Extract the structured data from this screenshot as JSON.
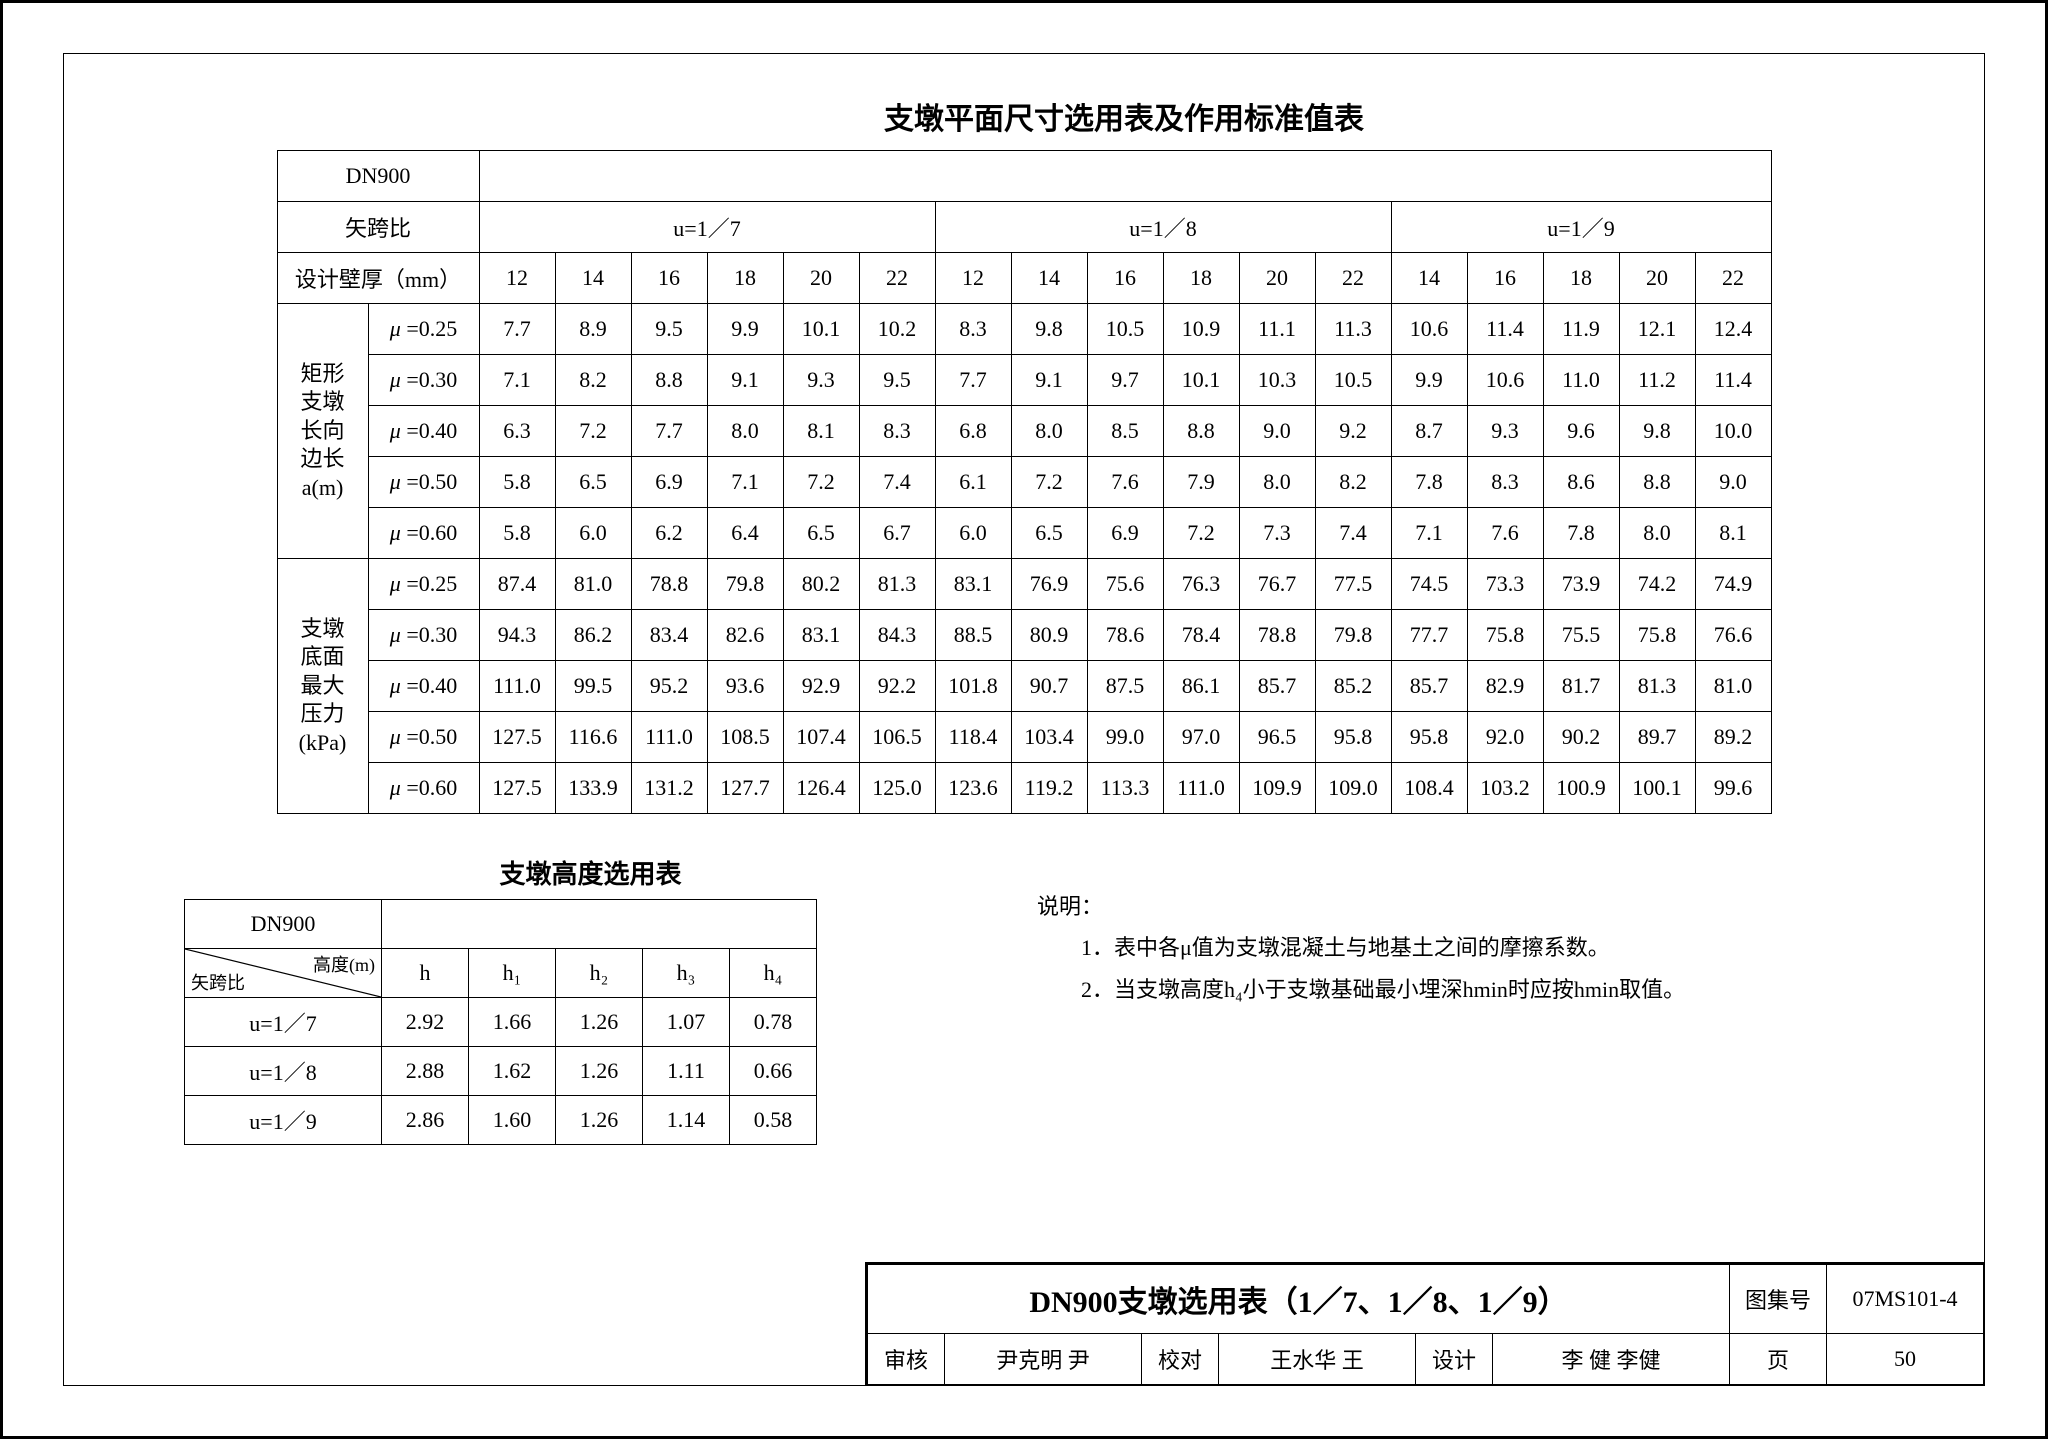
{
  "main": {
    "title": "支墩平面尺寸选用表及作用标准值表",
    "dn": "DN900",
    "span_ratio_label": "矢跨比",
    "wall_label": "设计壁厚（mm）",
    "u_groups": [
      "u=1／7",
      "u=1／8",
      "u=1／9"
    ],
    "walls_g1": [
      "12",
      "14",
      "16",
      "18",
      "20",
      "22"
    ],
    "walls_g2": [
      "12",
      "14",
      "16",
      "18",
      "20",
      "22"
    ],
    "walls_g3": [
      "14",
      "16",
      "18",
      "20",
      "22"
    ],
    "rowgroup1_label": "矩形支墩长向边长a(m)",
    "rowgroup2_label": "支墩底面最大压力(kPa)",
    "mu_labels": [
      "μ=0.25",
      "μ=0.30",
      "μ=0.40",
      "μ=0.50",
      "μ=0.60"
    ],
    "data_a": [
      [
        "7.7",
        "8.9",
        "9.5",
        "9.9",
        "10.1",
        "10.2",
        "8.3",
        "9.8",
        "10.5",
        "10.9",
        "11.1",
        "11.3",
        "10.6",
        "11.4",
        "11.9",
        "12.1",
        "12.4"
      ],
      [
        "7.1",
        "8.2",
        "8.8",
        "9.1",
        "9.3",
        "9.5",
        "7.7",
        "9.1",
        "9.7",
        "10.1",
        "10.3",
        "10.5",
        "9.9",
        "10.6",
        "11.0",
        "11.2",
        "11.4"
      ],
      [
        "6.3",
        "7.2",
        "7.7",
        "8.0",
        "8.1",
        "8.3",
        "6.8",
        "8.0",
        "8.5",
        "8.8",
        "9.0",
        "9.2",
        "8.7",
        "9.3",
        "9.6",
        "9.8",
        "10.0"
      ],
      [
        "5.8",
        "6.5",
        "6.9",
        "7.1",
        "7.2",
        "7.4",
        "6.1",
        "7.2",
        "7.6",
        "7.9",
        "8.0",
        "8.2",
        "7.8",
        "8.3",
        "8.6",
        "8.8",
        "9.0"
      ],
      [
        "5.8",
        "6.0",
        "6.2",
        "6.4",
        "6.5",
        "6.7",
        "6.0",
        "6.5",
        "6.9",
        "7.2",
        "7.3",
        "7.4",
        "7.1",
        "7.6",
        "7.8",
        "8.0",
        "8.1"
      ]
    ],
    "data_p": [
      [
        "87.4",
        "81.0",
        "78.8",
        "79.8",
        "80.2",
        "81.3",
        "83.1",
        "76.9",
        "75.6",
        "76.3",
        "76.7",
        "77.5",
        "74.5",
        "73.3",
        "73.9",
        "74.2",
        "74.9"
      ],
      [
        "94.3",
        "86.2",
        "83.4",
        "82.6",
        "83.1",
        "84.3",
        "88.5",
        "80.9",
        "78.6",
        "78.4",
        "78.8",
        "79.8",
        "77.7",
        "75.8",
        "75.5",
        "75.8",
        "76.6"
      ],
      [
        "111.0",
        "99.5",
        "95.2",
        "93.6",
        "92.9",
        "92.2",
        "101.8",
        "90.7",
        "87.5",
        "86.1",
        "85.7",
        "85.2",
        "85.7",
        "82.9",
        "81.7",
        "81.3",
        "81.0"
      ],
      [
        "127.5",
        "116.6",
        "111.0",
        "108.5",
        "107.4",
        "106.5",
        "118.4",
        "103.4",
        "99.0",
        "97.0",
        "96.5",
        "95.8",
        "95.8",
        "92.0",
        "90.2",
        "89.7",
        "89.2"
      ],
      [
        "127.5",
        "133.9",
        "131.2",
        "127.7",
        "126.4",
        "125.0",
        "123.6",
        "119.2",
        "113.3",
        "111.0",
        "109.9",
        "109.0",
        "108.4",
        "103.2",
        "100.9",
        "100.1",
        "99.6"
      ]
    ]
  },
  "height": {
    "dn": "DN900",
    "title": "支墩高度选用表",
    "diag_top": "高度(m)",
    "diag_bot": "矢跨比",
    "cols": [
      "h",
      "h₁",
      "h₂",
      "h₃",
      "h₄"
    ],
    "rows": [
      {
        "label": "u=1／7",
        "v": [
          "2.92",
          "1.66",
          "1.26",
          "1.07",
          "0.78"
        ]
      },
      {
        "label": "u=1／8",
        "v": [
          "2.88",
          "1.62",
          "1.26",
          "1.11",
          "0.66"
        ]
      },
      {
        "label": "u=1／9",
        "v": [
          "2.86",
          "1.60",
          "1.26",
          "1.14",
          "0.58"
        ]
      }
    ]
  },
  "notes": {
    "head": "说明：",
    "n1": "1．表中各μ值为支墩混凝土与地基土之间的摩擦系数。",
    "n2": "2．当支墩高度h₄小于支墩基础最小埋深hmin时应按hmin取值。"
  },
  "tb": {
    "title": "DN900支墩选用表（1／7、1／8、1／9）",
    "set_no_label": "图集号",
    "set_no": "07MS101-4",
    "review_l": "审核",
    "review_n": "尹克明",
    "check_l": "校对",
    "check_n": "王水华",
    "design_l": "设计",
    "design_n": "李  健",
    "page_l": "页",
    "page_n": "50"
  }
}
